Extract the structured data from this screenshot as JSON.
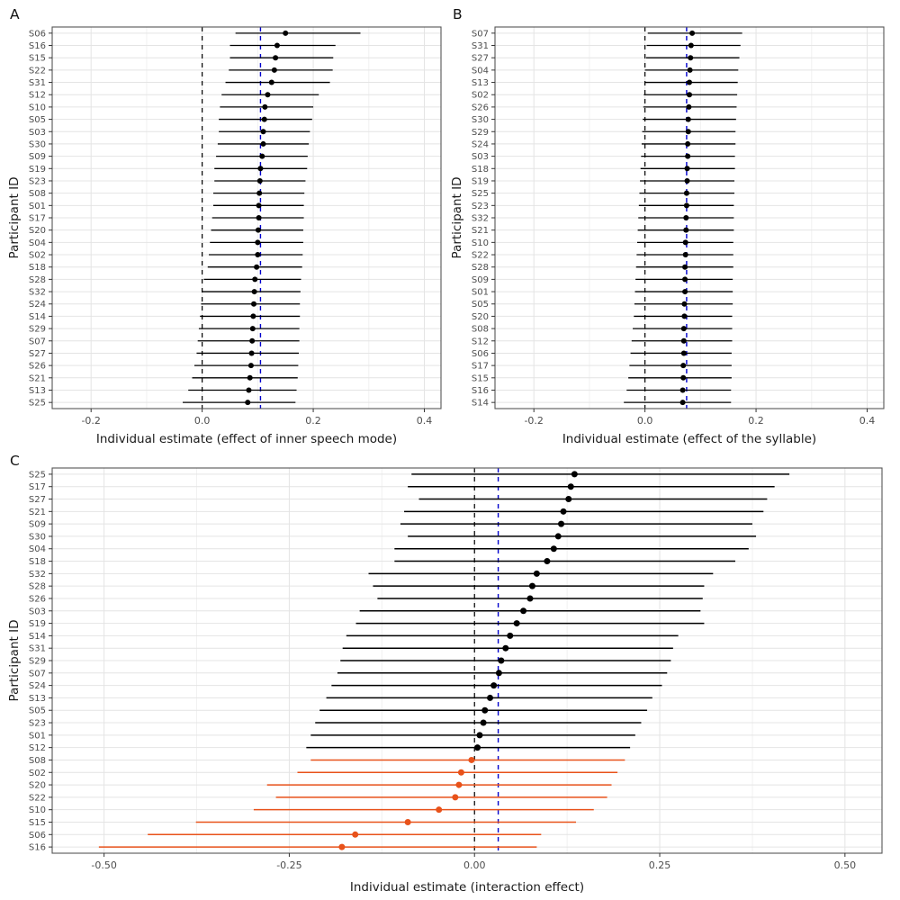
{
  "page": {
    "background": "#ffffff"
  },
  "style": {
    "panel_border": "#555555",
    "grid_major": "#e4e4e4",
    "grid_minor": "#f1f1f1",
    "tick_color": "#333333",
    "tick_label_color": "#4d4d4d",
    "axis_title_color": "#1a1a1a",
    "panel_label_color": "#111111",
    "point_black": "#000000",
    "point_orange": "#e8521a",
    "zero_line_color": "#000000",
    "group_line_color": "#0000cd"
  },
  "chart_data": [
    {
      "type": "forest",
      "panel_label": "A",
      "xlabel": "Individual estimate (effect of inner speech mode)",
      "ylabel": "Participant ID",
      "xlim": [
        -0.27,
        0.43
      ],
      "xticks": [
        -0.2,
        0.0,
        0.2,
        0.4
      ],
      "xtick_labels": [
        "-0.2",
        "0.0",
        "0.2",
        "0.4"
      ],
      "minor_ticks": [
        -0.1,
        0.1,
        0.3
      ],
      "zero_line": 0.0,
      "group_estimate_line": 0.105,
      "default_color": "black",
      "rows": [
        {
          "id": "S06",
          "est": 0.15,
          "lo": 0.06,
          "hi": 0.285
        },
        {
          "id": "S16",
          "est": 0.135,
          "lo": 0.05,
          "hi": 0.24
        },
        {
          "id": "S15",
          "est": 0.132,
          "lo": 0.05,
          "hi": 0.236
        },
        {
          "id": "S22",
          "est": 0.13,
          "lo": 0.048,
          "hi": 0.235
        },
        {
          "id": "S31",
          "est": 0.125,
          "lo": 0.042,
          "hi": 0.23
        },
        {
          "id": "S12",
          "est": 0.118,
          "lo": 0.035,
          "hi": 0.21
        },
        {
          "id": "S10",
          "est": 0.113,
          "lo": 0.032,
          "hi": 0.2
        },
        {
          "id": "S05",
          "est": 0.112,
          "lo": 0.03,
          "hi": 0.198
        },
        {
          "id": "S03",
          "est": 0.11,
          "lo": 0.03,
          "hi": 0.194
        },
        {
          "id": "S30",
          "est": 0.11,
          "lo": 0.028,
          "hi": 0.192
        },
        {
          "id": "S09",
          "est": 0.108,
          "lo": 0.025,
          "hi": 0.19
        },
        {
          "id": "S19",
          "est": 0.105,
          "lo": 0.022,
          "hi": 0.189
        },
        {
          "id": "S23",
          "est": 0.104,
          "lo": 0.022,
          "hi": 0.186
        },
        {
          "id": "S08",
          "est": 0.103,
          "lo": 0.02,
          "hi": 0.184
        },
        {
          "id": "S01",
          "est": 0.102,
          "lo": 0.02,
          "hi": 0.183
        },
        {
          "id": "S17",
          "est": 0.102,
          "lo": 0.018,
          "hi": 0.183
        },
        {
          "id": "S20",
          "est": 0.101,
          "lo": 0.016,
          "hi": 0.182
        },
        {
          "id": "S04",
          "est": 0.1,
          "lo": 0.014,
          "hi": 0.182
        },
        {
          "id": "S02",
          "est": 0.1,
          "lo": 0.012,
          "hi": 0.181
        },
        {
          "id": "S18",
          "est": 0.098,
          "lo": 0.01,
          "hi": 0.18
        },
        {
          "id": "S28",
          "est": 0.095,
          "lo": 0.003,
          "hi": 0.178
        },
        {
          "id": "S32",
          "est": 0.094,
          "lo": 0.0,
          "hi": 0.177
        },
        {
          "id": "S24",
          "est": 0.093,
          "lo": -0.002,
          "hi": 0.176
        },
        {
          "id": "S14",
          "est": 0.092,
          "lo": -0.004,
          "hi": 0.176
        },
        {
          "id": "S29",
          "est": 0.091,
          "lo": -0.006,
          "hi": 0.175
        },
        {
          "id": "S07",
          "est": 0.09,
          "lo": -0.008,
          "hi": 0.175
        },
        {
          "id": "S27",
          "est": 0.089,
          "lo": -0.01,
          "hi": 0.174
        },
        {
          "id": "S26",
          "est": 0.088,
          "lo": -0.014,
          "hi": 0.173
        },
        {
          "id": "S21",
          "est": 0.086,
          "lo": -0.018,
          "hi": 0.172
        },
        {
          "id": "S13",
          "est": 0.084,
          "lo": -0.025,
          "hi": 0.17
        },
        {
          "id": "S25",
          "est": 0.082,
          "lo": -0.035,
          "hi": 0.168
        }
      ]
    },
    {
      "type": "forest",
      "panel_label": "B",
      "xlabel": "Individual estimate (effect of the syllable)",
      "ylabel": "Participant ID",
      "xlim": [
        -0.27,
        0.43
      ],
      "xticks": [
        -0.2,
        0.0,
        0.2,
        0.4
      ],
      "xtick_labels": [
        "-0.2",
        "0.0",
        "0.2",
        "0.4"
      ],
      "minor_ticks": [
        -0.1,
        0.1,
        0.3
      ],
      "zero_line": 0.0,
      "group_estimate_line": 0.075,
      "default_color": "black",
      "rows": [
        {
          "id": "S07",
          "est": 0.085,
          "lo": 0.005,
          "hi": 0.175
        },
        {
          "id": "S31",
          "est": 0.083,
          "lo": 0.003,
          "hi": 0.172
        },
        {
          "id": "S27",
          "est": 0.082,
          "lo": 0.002,
          "hi": 0.17
        },
        {
          "id": "S04",
          "est": 0.081,
          "lo": 0.0,
          "hi": 0.168
        },
        {
          "id": "S13",
          "est": 0.08,
          "lo": 0.0,
          "hi": 0.167
        },
        {
          "id": "S02",
          "est": 0.08,
          "lo": -0.002,
          "hi": 0.166
        },
        {
          "id": "S26",
          "est": 0.079,
          "lo": -0.003,
          "hi": 0.165
        },
        {
          "id": "S30",
          "est": 0.078,
          "lo": -0.004,
          "hi": 0.164
        },
        {
          "id": "S29",
          "est": 0.078,
          "lo": -0.005,
          "hi": 0.163
        },
        {
          "id": "S24",
          "est": 0.077,
          "lo": -0.006,
          "hi": 0.163
        },
        {
          "id": "S03",
          "est": 0.077,
          "lo": -0.007,
          "hi": 0.162
        },
        {
          "id": "S18",
          "est": 0.076,
          "lo": -0.008,
          "hi": 0.162
        },
        {
          "id": "S19",
          "est": 0.076,
          "lo": -0.009,
          "hi": 0.161
        },
        {
          "id": "S25",
          "est": 0.075,
          "lo": -0.01,
          "hi": 0.161
        },
        {
          "id": "S23",
          "est": 0.075,
          "lo": -0.011,
          "hi": 0.16
        },
        {
          "id": "S32",
          "est": 0.074,
          "lo": -0.012,
          "hi": 0.16
        },
        {
          "id": "S21",
          "est": 0.074,
          "lo": -0.013,
          "hi": 0.16
        },
        {
          "id": "S10",
          "est": 0.073,
          "lo": -0.014,
          "hi": 0.159
        },
        {
          "id": "S22",
          "est": 0.073,
          "lo": -0.015,
          "hi": 0.159
        },
        {
          "id": "S28",
          "est": 0.072,
          "lo": -0.016,
          "hi": 0.159
        },
        {
          "id": "S09",
          "est": 0.072,
          "lo": -0.017,
          "hi": 0.158
        },
        {
          "id": "S01",
          "est": 0.072,
          "lo": -0.018,
          "hi": 0.158
        },
        {
          "id": "S05",
          "est": 0.071,
          "lo": -0.019,
          "hi": 0.158
        },
        {
          "id": "S20",
          "est": 0.071,
          "lo": -0.02,
          "hi": 0.157
        },
        {
          "id": "S08",
          "est": 0.07,
          "lo": -0.022,
          "hi": 0.157
        },
        {
          "id": "S12",
          "est": 0.07,
          "lo": -0.024,
          "hi": 0.157
        },
        {
          "id": "S06",
          "est": 0.07,
          "lo": -0.026,
          "hi": 0.156
        },
        {
          "id": "S17",
          "est": 0.069,
          "lo": -0.028,
          "hi": 0.156
        },
        {
          "id": "S15",
          "est": 0.069,
          "lo": -0.03,
          "hi": 0.156
        },
        {
          "id": "S16",
          "est": 0.068,
          "lo": -0.033,
          "hi": 0.155
        },
        {
          "id": "S14",
          "est": 0.068,
          "lo": -0.038,
          "hi": 0.155
        }
      ]
    },
    {
      "type": "forest",
      "panel_label": "C",
      "xlabel": "Individual estimate (interaction effect)",
      "ylabel": "Participant ID",
      "xlim": [
        -0.57,
        0.55
      ],
      "xticks": [
        -0.5,
        -0.25,
        0.0,
        0.25,
        0.5
      ],
      "xtick_labels": [
        "-0.50",
        "-0.25",
        "0.00",
        "0.25",
        "0.50"
      ],
      "minor_ticks": [
        -0.375,
        -0.125,
        0.125,
        0.375
      ],
      "zero_line": 0.0,
      "group_estimate_line": 0.032,
      "default_color": "black",
      "rows": [
        {
          "id": "S25",
          "est": 0.135,
          "lo": -0.085,
          "hi": 0.425,
          "color": "black"
        },
        {
          "id": "S17",
          "est": 0.13,
          "lo": -0.09,
          "hi": 0.405,
          "color": "black"
        },
        {
          "id": "S27",
          "est": 0.127,
          "lo": -0.075,
          "hi": 0.395,
          "color": "black"
        },
        {
          "id": "S21",
          "est": 0.12,
          "lo": -0.095,
          "hi": 0.39,
          "color": "black"
        },
        {
          "id": "S09",
          "est": 0.117,
          "lo": -0.1,
          "hi": 0.375,
          "color": "black"
        },
        {
          "id": "S30",
          "est": 0.113,
          "lo": -0.09,
          "hi": 0.38,
          "color": "black"
        },
        {
          "id": "S04",
          "est": 0.107,
          "lo": -0.108,
          "hi": 0.37,
          "color": "black"
        },
        {
          "id": "S18",
          "est": 0.098,
          "lo": -0.108,
          "hi": 0.352,
          "color": "black"
        },
        {
          "id": "S32",
          "est": 0.084,
          "lo": -0.143,
          "hi": 0.322,
          "color": "black"
        },
        {
          "id": "S28",
          "est": 0.078,
          "lo": -0.137,
          "hi": 0.31,
          "color": "black"
        },
        {
          "id": "S26",
          "est": 0.075,
          "lo": -0.131,
          "hi": 0.308,
          "color": "black"
        },
        {
          "id": "S03",
          "est": 0.066,
          "lo": -0.155,
          "hi": 0.305,
          "color": "black"
        },
        {
          "id": "S19",
          "est": 0.057,
          "lo": -0.16,
          "hi": 0.31,
          "color": "black"
        },
        {
          "id": "S14",
          "est": 0.048,
          "lo": -0.173,
          "hi": 0.275,
          "color": "black"
        },
        {
          "id": "S31",
          "est": 0.042,
          "lo": -0.178,
          "hi": 0.268,
          "color": "black"
        },
        {
          "id": "S29",
          "est": 0.036,
          "lo": -0.181,
          "hi": 0.265,
          "color": "black"
        },
        {
          "id": "S07",
          "est": 0.033,
          "lo": -0.185,
          "hi": 0.26,
          "color": "black"
        },
        {
          "id": "S24",
          "est": 0.026,
          "lo": -0.193,
          "hi": 0.253,
          "color": "black"
        },
        {
          "id": "S13",
          "est": 0.021,
          "lo": -0.2,
          "hi": 0.24,
          "color": "black"
        },
        {
          "id": "S05",
          "est": 0.014,
          "lo": -0.209,
          "hi": 0.233,
          "color": "black"
        },
        {
          "id": "S23",
          "est": 0.012,
          "lo": -0.215,
          "hi": 0.225,
          "color": "black"
        },
        {
          "id": "S01",
          "est": 0.007,
          "lo": -0.221,
          "hi": 0.217,
          "color": "black"
        },
        {
          "id": "S12",
          "est": 0.004,
          "lo": -0.227,
          "hi": 0.21,
          "color": "black"
        },
        {
          "id": "S08",
          "est": -0.004,
          "lo": -0.221,
          "hi": 0.203,
          "color": "orange"
        },
        {
          "id": "S02",
          "est": -0.018,
          "lo": -0.239,
          "hi": 0.193,
          "color": "orange"
        },
        {
          "id": "S20",
          "est": -0.021,
          "lo": -0.28,
          "hi": 0.185,
          "color": "orange"
        },
        {
          "id": "S22",
          "est": -0.026,
          "lo": -0.268,
          "hi": 0.179,
          "color": "orange"
        },
        {
          "id": "S10",
          "est": -0.048,
          "lo": -0.298,
          "hi": 0.161,
          "color": "orange"
        },
        {
          "id": "S15",
          "est": -0.09,
          "lo": -0.376,
          "hi": 0.137,
          "color": "orange"
        },
        {
          "id": "S06",
          "est": -0.161,
          "lo": -0.441,
          "hi": 0.09,
          "color": "orange"
        },
        {
          "id": "S16",
          "est": -0.179,
          "lo": -0.507,
          "hi": 0.084,
          "color": "orange"
        }
      ]
    }
  ]
}
